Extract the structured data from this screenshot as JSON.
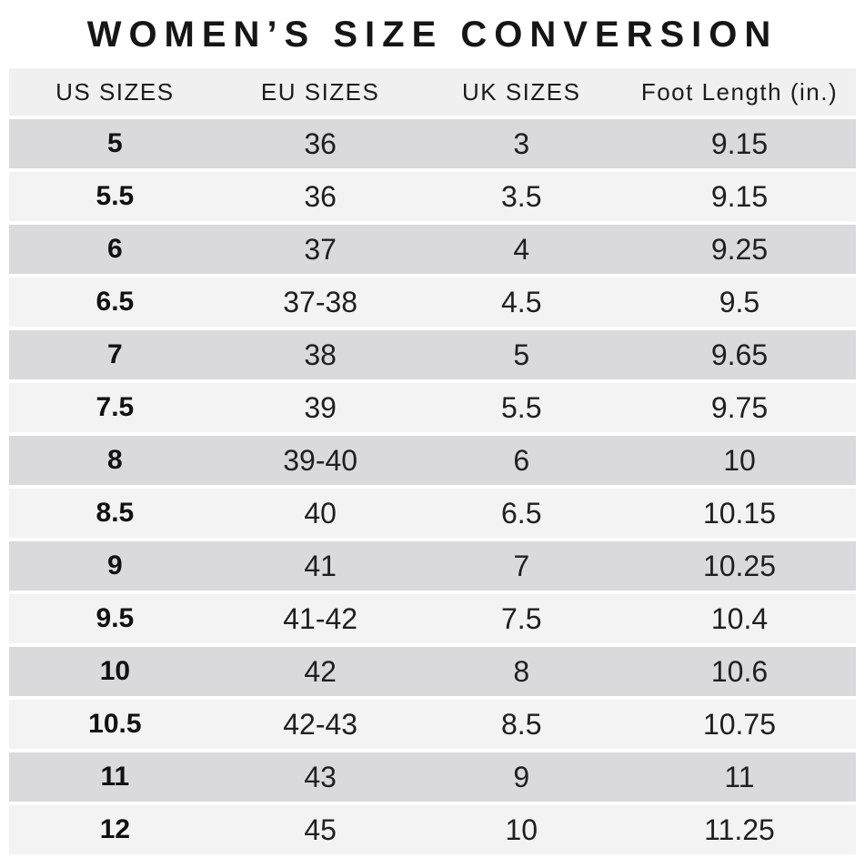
{
  "colors": {
    "background": "#ffffff",
    "header_bg": "#f0f0f0",
    "row_dark": "#dadadc",
    "row_light": "#f3f3f4",
    "text": "#1b1b1b"
  },
  "chart_data": {
    "type": "table",
    "title": "WOMEN’S SIZE CONVERSION",
    "columns": [
      "US SIZES",
      "EU SIZES",
      "UK SIZES",
      "Foot Length (in.)"
    ],
    "rows": [
      [
        "5",
        "36",
        "3",
        "9.15"
      ],
      [
        "5.5",
        "36",
        "3.5",
        "9.15"
      ],
      [
        "6",
        "37",
        "4",
        "9.25"
      ],
      [
        "6.5",
        "37-38",
        "4.5",
        "9.5"
      ],
      [
        "7",
        "38",
        "5",
        "9.65"
      ],
      [
        "7.5",
        "39",
        "5.5",
        "9.75"
      ],
      [
        "8",
        "39-40",
        "6",
        "10"
      ],
      [
        "8.5",
        "40",
        "6.5",
        "10.15"
      ],
      [
        "9",
        "41",
        "7",
        "10.25"
      ],
      [
        "9.5",
        "41-42",
        "7.5",
        "10.4"
      ],
      [
        "10",
        "42",
        "8",
        "10.6"
      ],
      [
        "10.5",
        "42-43",
        "8.5",
        "10.75"
      ],
      [
        "11",
        "43",
        "9",
        "11"
      ],
      [
        "12",
        "45",
        "10",
        "11.25"
      ]
    ]
  }
}
